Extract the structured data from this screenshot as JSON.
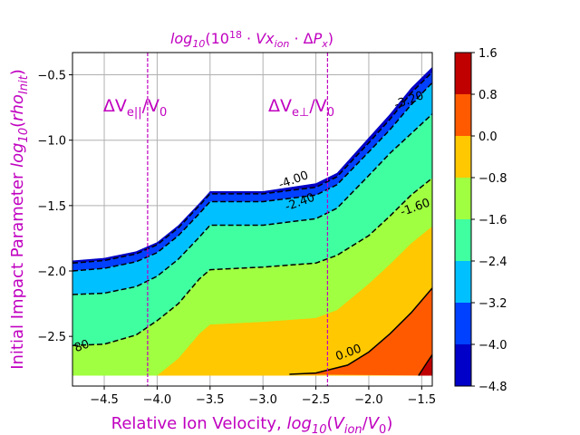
{
  "figure": {
    "title_top": "log10(10^18 · Vx_ion · ΔP_x)",
    "colors": {
      "accent": "#c000c0",
      "levels": [
        "#0000c8",
        "#0040ff",
        "#00c0ff",
        "#40ffa0",
        "#a0ff40",
        "#ffc800",
        "#ff5a00",
        "#c00000"
      ]
    }
  },
  "chart_data": {
    "type": "contourf",
    "title": "log10(10^18 · Vx_ion · ΔP_x)",
    "xlabel": "Relative Ion Velocity,  log10(V_ion/V_0)",
    "ylabel": "Initial Impact Parameter log10(rho_Init)",
    "xlim": [
      -4.8,
      -1.4
    ],
    "ylim": [
      -2.88,
      -0.33
    ],
    "x_ticks": [
      -4.5,
      -4.0,
      -3.5,
      -3.0,
      -2.5,
      -2.0,
      -1.5
    ],
    "x_tick_labels": [
      "−4.5",
      "−4.0",
      "−3.5",
      "−3.0",
      "−2.5",
      "−2.0",
      "−1.5"
    ],
    "y_ticks": [
      -2.5,
      -2.0,
      -1.5,
      -1.0,
      -0.5
    ],
    "y_tick_labels": [
      "−2.5",
      "−2.0",
      "−1.5",
      "−1.0",
      "−0.5"
    ],
    "grid": true,
    "colorbar": {
      "levels": [
        -4.8,
        -4.0,
        -3.2,
        -2.4,
        -1.6,
        -0.8,
        0.0,
        0.8,
        1.6
      ],
      "tick_labels": [
        "−4.8",
        "−4.0",
        "−3.2",
        "−2.4",
        "−1.6",
        "−0.8",
        "0.0",
        "0.8",
        "1.6"
      ]
    },
    "boundaries": {
      "x": [
        -4.8,
        -4.5,
        -4.2,
        -4.0,
        -3.8,
        -3.6,
        -3.5,
        -3.0,
        -2.5,
        -2.3,
        -2.0,
        -1.8,
        -1.6,
        -1.4
      ],
      "top": [
        -1.92,
        -1.9,
        -1.85,
        -1.78,
        -1.65,
        -1.48,
        -1.39,
        -1.39,
        -1.33,
        -1.25,
        -0.98,
        -0.8,
        -0.6,
        -0.44
      ],
      "m4_0": [
        -1.94,
        -1.92,
        -1.87,
        -1.8,
        -1.67,
        -1.5,
        -1.41,
        -1.41,
        -1.36,
        -1.28,
        -1.02,
        -0.84,
        -0.64,
        -0.48
      ],
      "m3_2": [
        -2.0,
        -1.98,
        -1.93,
        -1.86,
        -1.73,
        -1.56,
        -1.47,
        -1.47,
        -1.42,
        -1.34,
        -1.09,
        -0.92,
        -0.73,
        -0.56
      ],
      "m2_4": [
        -2.18,
        -2.17,
        -2.12,
        -2.04,
        -1.91,
        -1.74,
        -1.65,
        -1.65,
        -1.6,
        -1.52,
        -1.27,
        -1.1,
        -0.95,
        -0.8
      ],
      "m1_6": [
        -2.57,
        -2.56,
        -2.49,
        -2.38,
        -2.25,
        -2.06,
        -1.99,
        -1.97,
        -1.94,
        -1.88,
        -1.73,
        -1.58,
        -1.42,
        -1.29
      ],
      "bottom": -2.8,
      "zero": {
        "x": [
          -2.75,
          -2.5,
          -2.2,
          -2.0,
          -1.8,
          -1.6,
          -1.4
        ],
        "y": [
          -2.79,
          -2.78,
          -2.72,
          -2.62,
          -2.48,
          -2.32,
          -2.13
        ]
      },
      "p0_8": {
        "x": [
          -1.53,
          -1.45,
          -1.4
        ],
        "y": [
          -2.8,
          -2.7,
          -2.64
        ]
      }
    },
    "contour_labels": [
      {
        "text": "-4.00",
        "x": -2.7,
        "y": -1.33
      },
      {
        "text": "-3.20",
        "x": -1.61,
        "y": -0.72
      },
      {
        "text": "-2.40",
        "x": -2.64,
        "y": -1.5
      },
      {
        "text": "-1.60",
        "x": -1.55,
        "y": -1.54
      },
      {
        "text": "0.00",
        "x": -2.18,
        "y": -2.65
      },
      {
        "text": "80",
        "x": -4.7,
        "y": -2.6
      }
    ],
    "vlines": [
      {
        "x": -4.09,
        "label": "ΔV_e||/V_e0",
        "label_x": -4.51,
        "label_y": -0.78
      },
      {
        "x": -2.39,
        "label": "ΔV_e⊥/V_e0",
        "label_x": -2.95,
        "label_y": -0.78
      }
    ]
  }
}
